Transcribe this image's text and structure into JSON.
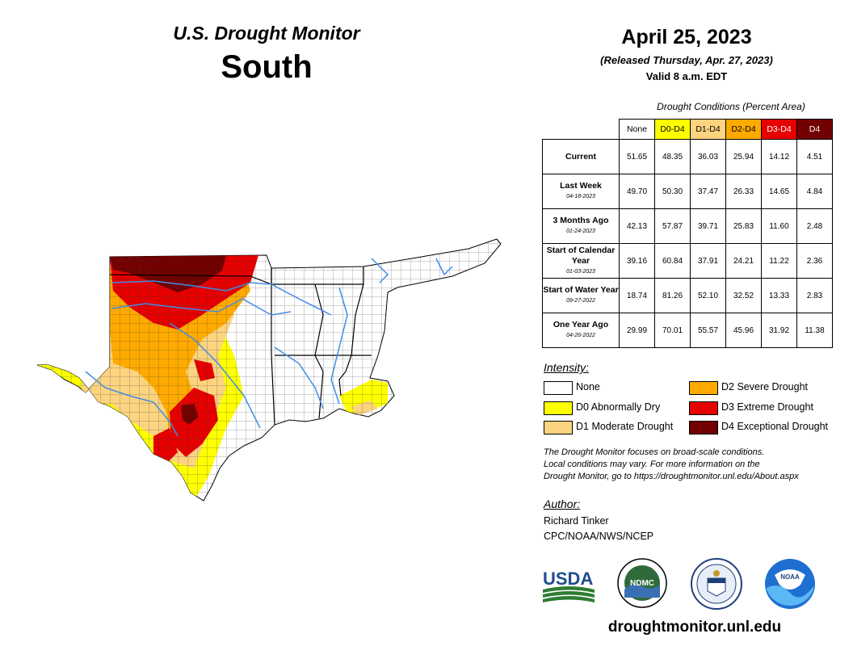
{
  "header": {
    "title": "U.S. Drought Monitor",
    "region": "South"
  },
  "date_block": {
    "date": "April 25, 2023",
    "released": "(Released Thursday, Apr. 27, 2023)",
    "valid": "Valid 8 a.m. EDT"
  },
  "table": {
    "caption": "Drought Conditions (Percent Area)",
    "headers": [
      "None",
      "D0-D4",
      "D1-D4",
      "D2-D4",
      "D3-D4",
      "D4"
    ],
    "header_colors": [
      "#ffffff",
      "#ffff00",
      "#fcd37f",
      "#ffaa00",
      "#e60000",
      "#730000"
    ],
    "rows": [
      {
        "label": "Current",
        "sub": "",
        "values": [
          "51.65",
          "48.35",
          "36.03",
          "25.94",
          "14.12",
          "4.51"
        ]
      },
      {
        "label": "Last Week",
        "sub": "04-18-2023",
        "values": [
          "49.70",
          "50.30",
          "37.47",
          "26.33",
          "14.65",
          "4.84"
        ]
      },
      {
        "label": "3 Months Ago",
        "sub": "01-24-2023",
        "values": [
          "42.13",
          "57.87",
          "39.71",
          "25.83",
          "11.60",
          "2.48"
        ]
      },
      {
        "label": "Start of Calendar Year",
        "sub": "01-03-2023",
        "values": [
          "39.16",
          "60.84",
          "37.91",
          "24.21",
          "11.22",
          "2.36"
        ]
      },
      {
        "label": "Start of Water Year",
        "sub": "09-27-2022",
        "values": [
          "18.74",
          "81.26",
          "52.10",
          "32.52",
          "13.33",
          "2.83"
        ]
      },
      {
        "label": "One Year Ago",
        "sub": "04-26-2022",
        "values": [
          "29.99",
          "70.01",
          "55.57",
          "45.96",
          "31.92",
          "11.38"
        ]
      }
    ]
  },
  "legend": {
    "title": "Intensity:",
    "items": [
      {
        "label": "None",
        "color": "#ffffff"
      },
      {
        "label": "D0 Abnormally Dry",
        "color": "#ffff00"
      },
      {
        "label": "D1 Moderate Drought",
        "color": "#fcd37f"
      },
      {
        "label": "D2 Severe Drought",
        "color": "#ffaa00"
      },
      {
        "label": "D3 Extreme Drought",
        "color": "#e60000"
      },
      {
        "label": "D4 Exceptional Drought",
        "color": "#730000"
      }
    ]
  },
  "note": {
    "line1": "The Drought Monitor focuses on broad-scale conditions.",
    "line2": "Local conditions may vary. For more information on the",
    "line3": "Drought Monitor, go to https://droughtmonitor.unl.edu/About.aspx"
  },
  "author": {
    "title": "Author:",
    "name": "Richard Tinker",
    "org": "CPC/NOAA/NWS/NCEP"
  },
  "logos": {
    "usda": "USDA",
    "ndmc": "NDMC",
    "noaa": "NOAA"
  },
  "site_url": "droughtmonitor.unl.edu",
  "map": {
    "colors": {
      "none": "#ffffff",
      "d0": "#ffff00",
      "d1": "#fcd37f",
      "d2": "#ffaa00",
      "d3": "#e60000",
      "d4": "#730000",
      "rivers": "#3e8ee6"
    }
  }
}
